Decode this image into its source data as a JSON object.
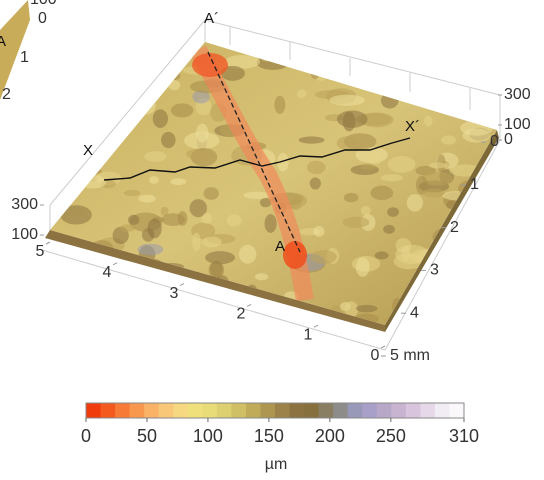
{
  "chart_data": {
    "type": "surface",
    "annotations": {
      "a_prime": "A´",
      "a": "A",
      "x": "X",
      "x_prime": "X´"
    },
    "front_axis": {
      "xlim": [
        0,
        5
      ],
      "xticks": [
        0,
        1,
        2,
        3,
        4,
        5
      ]
    },
    "right_axis": {
      "ylim": [
        0,
        5
      ],
      "yticks": [
        0,
        1,
        2,
        3,
        4,
        {
          "value": 5,
          "label": "5 mm"
        }
      ]
    },
    "right_z_axis": {
      "zlim": [
        0,
        300
      ],
      "zticks": [
        0,
        100,
        300
      ]
    },
    "left_z_axis": {
      "zlim": [
        0,
        300
      ],
      "zticks": [
        100,
        300
      ]
    },
    "cropped_panel_labels": [
      "100",
      "0",
      "A",
      "1",
      "2"
    ],
    "colorbar": {
      "label": "µm",
      "clim": [
        0,
        310
      ],
      "ticks": [
        0,
        50,
        100,
        150,
        200,
        250,
        310
      ],
      "colors": [
        "#f03c0c",
        "#f45a1e",
        "#f77a36",
        "#f8984e",
        "#f9b266",
        "#f8c878",
        "#f5d880",
        "#f0e07c",
        "#e8dc78",
        "#dcd070",
        "#cfc066",
        "#c0ac58",
        "#ae9650",
        "#9c8248",
        "#8c7240",
        "#86703e",
        "#8a7e62",
        "#8e8c8a",
        "#9898b8",
        "#a8a0c8",
        "#b8a8c8",
        "#c8b4d0",
        "#d8c4dc",
        "#e6d8e8",
        "#f2ecf4",
        "#fbf8fb"
      ]
    }
  }
}
